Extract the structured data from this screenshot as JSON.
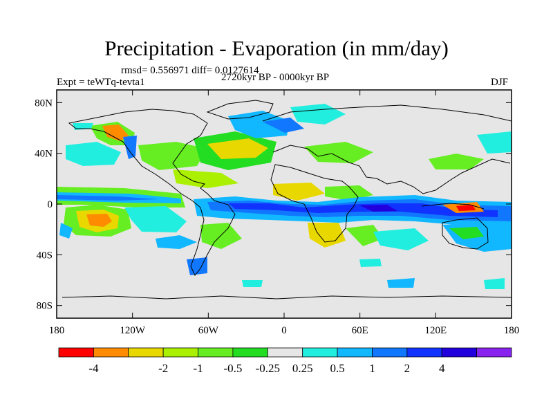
{
  "title": "Precipitation - Evaporation (in mm/day)",
  "stats_text": "rmsd= 0.556971 diff= 0.0127614",
  "experiment_label": "Expt = teWTq-tevta1",
  "period_label": "2720kyr BP - 0000kyr BP",
  "season_label": "DJF",
  "lat_ticks": [
    {
      "lat": 80,
      "label": "80N"
    },
    {
      "lat": 40,
      "label": "40N"
    },
    {
      "lat": 0,
      "label": "0"
    },
    {
      "lat": -40,
      "label": "40S"
    },
    {
      "lat": -80,
      "label": "80S"
    }
  ],
  "lon_ticks": [
    {
      "lon": -180,
      "label": "180"
    },
    {
      "lon": -120,
      "label": "120W"
    },
    {
      "lon": -60,
      "label": "60W"
    },
    {
      "lon": 0,
      "label": "0"
    },
    {
      "lon": 60,
      "label": "60E"
    },
    {
      "lon": 120,
      "label": "120E"
    },
    {
      "lon": 180,
      "label": "180"
    }
  ],
  "colorbar": {
    "colors": [
      "#ff0000",
      "#ff8c00",
      "#e8d800",
      "#aaf000",
      "#66ee22",
      "#22dd22",
      "#e6e6e6",
      "#22eee0",
      "#11b8ff",
      "#1177ff",
      "#1133ff",
      "#2200dd",
      "#8822ee"
    ],
    "labels": [
      "-4",
      "-2",
      "-1",
      "-0.5",
      "-0.25",
      "0.25",
      "0.5",
      "1",
      "2",
      "4"
    ]
  },
  "colors": {
    "land_background": "#e6e6e6",
    "coastline": "#000000"
  }
}
